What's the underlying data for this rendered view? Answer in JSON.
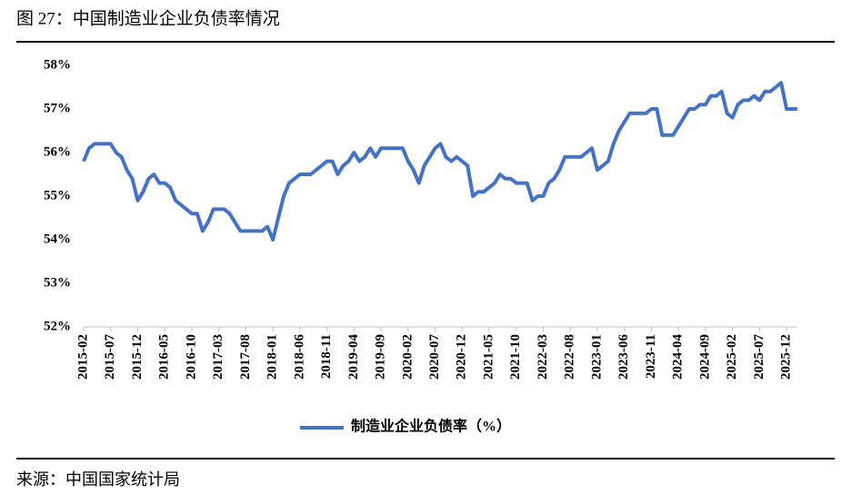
{
  "chart_data": {
    "type": "line",
    "title": "图 27：中国制造业企业负债率情况",
    "source": "来源：中国国家统计局",
    "categories": [
      "2015-02",
      null,
      null,
      null,
      null,
      "2015-07",
      null,
      null,
      null,
      null,
      "2015-12",
      null,
      null,
      null,
      null,
      "2016-05",
      null,
      null,
      null,
      null,
      "2016-10",
      null,
      null,
      null,
      null,
      "2017-03",
      null,
      null,
      null,
      null,
      "2017-08",
      null,
      null,
      null,
      null,
      "2018-01",
      null,
      null,
      null,
      null,
      "2018-06",
      null,
      null,
      null,
      null,
      "2018-11",
      null,
      null,
      null,
      null,
      "2019-04",
      null,
      null,
      null,
      null,
      "2019-09",
      null,
      null,
      null,
      null,
      "2020-02",
      null,
      null,
      null,
      null,
      "2020-07",
      null,
      null,
      null,
      null,
      "2020-12",
      null,
      null,
      null,
      null,
      "2021-05",
      null,
      null,
      null,
      null,
      "2021-10",
      null,
      null,
      null,
      null,
      "2022-03",
      null,
      null,
      null,
      null,
      "2022-08",
      null,
      null,
      null,
      null,
      "2023-01",
      null,
      null,
      null,
      null,
      "2023-06",
      null,
      null,
      null,
      null,
      "2023-11",
      null,
      null,
      null,
      null,
      "2024-04",
      null,
      null,
      null,
      null,
      "2024-09",
      null,
      null,
      null,
      null,
      "2025-02",
      null,
      null,
      null,
      null,
      "2025-07",
      null,
      null,
      null,
      null,
      "2025-12",
      null,
      null
    ],
    "series": [
      {
        "name": "制造业企业负债率（%）",
        "color": "#4472c4",
        "values": [
          55.8,
          56.1,
          56.2,
          56.2,
          56.2,
          56.2,
          56.0,
          55.9,
          55.6,
          55.4,
          54.9,
          55.1,
          55.4,
          55.5,
          55.3,
          55.3,
          55.2,
          54.9,
          54.8,
          54.7,
          54.6,
          54.6,
          54.2,
          54.4,
          54.7,
          54.7,
          54.7,
          54.6,
          54.4,
          54.2,
          54.2,
          54.2,
          54.2,
          54.2,
          54.3,
          54.0,
          54.5,
          55.0,
          55.3,
          55.4,
          55.5,
          55.5,
          55.5,
          55.6,
          55.7,
          55.8,
          55.8,
          55.5,
          55.7,
          55.8,
          56.0,
          55.8,
          55.9,
          56.1,
          55.9,
          56.1,
          56.1,
          56.1,
          56.1,
          56.1,
          55.8,
          55.6,
          55.3,
          55.7,
          55.9,
          56.1,
          56.2,
          55.9,
          55.8,
          55.9,
          55.8,
          55.7,
          55.0,
          55.1,
          55.1,
          55.2,
          55.3,
          55.5,
          55.4,
          55.4,
          55.3,
          55.3,
          55.3,
          54.9,
          55.0,
          55.0,
          55.3,
          55.4,
          55.6,
          55.9,
          55.9,
          55.9,
          55.9,
          56.0,
          56.1,
          55.6,
          55.7,
          55.8,
          56.2,
          56.5,
          56.7,
          56.9,
          56.9,
          56.9,
          56.9,
          57.0,
          57.0,
          56.4,
          56.4,
          56.4,
          56.6,
          56.8,
          57.0,
          57.0,
          57.1,
          57.1,
          57.3,
          57.3,
          57.4,
          56.9,
          56.8,
          57.1,
          57.2,
          57.2,
          57.3,
          57.2,
          57.4,
          57.4,
          57.5,
          57.6,
          57.0,
          57.0,
          57.0
        ]
      }
    ],
    "ylim": [
      52,
      58
    ],
    "yticks": [
      {
        "value": 52,
        "label": "52%"
      },
      {
        "value": 53,
        "label": "53%"
      },
      {
        "value": 54,
        "label": "54%"
      },
      {
        "value": 55,
        "label": "55%"
      },
      {
        "value": 56,
        "label": "56%"
      },
      {
        "value": 57,
        "label": "57%"
      },
      {
        "value": 58,
        "label": "58%"
      }
    ],
    "grid": false,
    "legend": "bottom"
  }
}
